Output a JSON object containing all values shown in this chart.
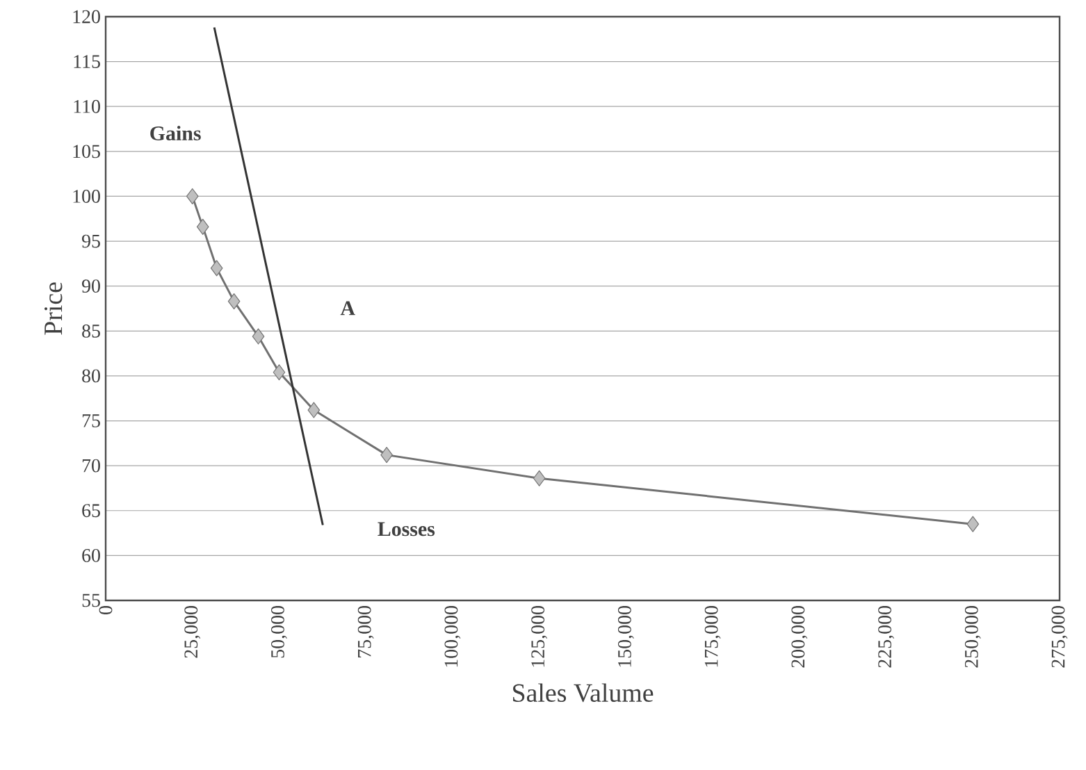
{
  "chart_data": {
    "type": "line",
    "xlabel": "Sales Valume",
    "ylabel": "Price",
    "xlim": [
      0,
      275000
    ],
    "ylim": [
      55,
      120
    ],
    "xticks": [
      0,
      {
        "value": 25000,
        "label": "25,000"
      },
      {
        "value": 50000,
        "label": "50,000"
      },
      {
        "value": 75000,
        "label": "75,000"
      },
      {
        "value": 100000,
        "label": "100,000"
      },
      {
        "value": 125000,
        "label": "125,000"
      },
      {
        "value": 150000,
        "label": "150,000"
      },
      {
        "value": 175000,
        "label": "175,000"
      },
      {
        "value": 200000,
        "label": "200,000"
      },
      {
        "value": 225000,
        "label": "225,000"
      },
      {
        "value": 250000,
        "label": "250,000"
      },
      {
        "value": 275000,
        "label": "275,000"
      }
    ],
    "yticks": [
      55,
      60,
      65,
      70,
      75,
      80,
      85,
      90,
      95,
      100,
      105,
      110,
      115,
      120
    ],
    "grid": "y",
    "series": [
      {
        "color": "#707070",
        "marker": "diamond",
        "x": [
          25000,
          28000,
          32000,
          37000,
          44000,
          50000,
          60000,
          81000,
          125000,
          250000
        ],
        "values": [
          100,
          96.6,
          92,
          88.3,
          84.4,
          80.4,
          76.2,
          71.2,
          68.6,
          63.5
        ]
      },
      {
        "color": "#333333",
        "marker": "none",
        "x": [
          31300,
          62600
        ],
        "values": [
          118.8,
          63.4
        ]
      }
    ],
    "annotations": [
      "Gains",
      "A",
      "Losses"
    ]
  }
}
